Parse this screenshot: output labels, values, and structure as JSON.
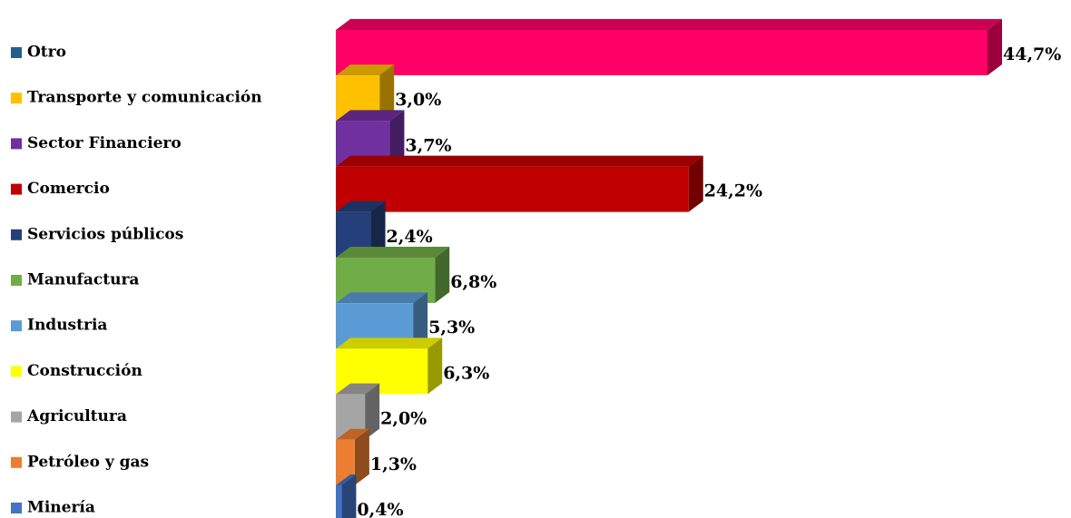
{
  "chart_data": {
    "type": "bar3d-horizontal",
    "categories": [
      "Otro",
      "Transporte y comunicación",
      "Sector Financiero",
      "Comercio",
      "Servicios públicos",
      "Manufactura",
      "Industria",
      "Construcción",
      "Agricultura",
      "Petróleo y gas",
      "Minería"
    ],
    "values": [
      44.7,
      3.0,
      3.7,
      24.2,
      2.4,
      6.8,
      5.3,
      6.3,
      2.0,
      1.3,
      0.4
    ],
    "value_labels": [
      "44,7%",
      "3,0%",
      "3,7%",
      "24,2%",
      "2,4%",
      "6,8%",
      "5,3%",
      "6,3%",
      "2,0%",
      "1,3%",
      "0,4%"
    ],
    "colors": [
      "#ff0066",
      "#ffc000",
      "#7030a0",
      "#c00000",
      "#243f7a",
      "#70ad47",
      "#5b9bd5",
      "#ffff00",
      "#a5a5a5",
      "#ed7d31",
      "#4472c4"
    ],
    "legend_colors": [
      "#255e91",
      "#ffc000",
      "#7030a0",
      "#c00000",
      "#243f7a",
      "#70ad47",
      "#5b9bd5",
      "#ffff00",
      "#a5a5a5",
      "#ed7d31",
      "#4472c4"
    ]
  }
}
